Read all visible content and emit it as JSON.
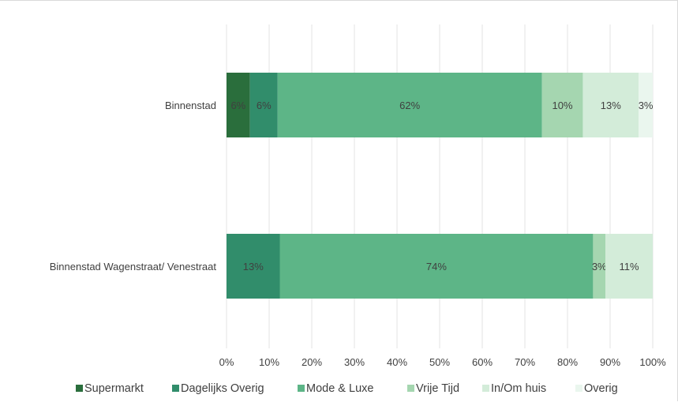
{
  "chart_data": {
    "type": "bar",
    "orientation": "horizontal",
    "stacked": true,
    "title": "",
    "xlabel": "",
    "ylabel": "",
    "xlim": [
      0,
      100
    ],
    "grid": true,
    "legend_position": "bottom",
    "categories": [
      "Binnenstad",
      "Binnenstad Wagenstraat/ Venestraat"
    ],
    "x_ticks": [
      "0%",
      "10%",
      "20%",
      "30%",
      "40%",
      "50%",
      "60%",
      "70%",
      "80%",
      "90%",
      "100%"
    ],
    "series": [
      {
        "name": "Supermarkt",
        "color": "#2a6e3c",
        "values": [
          5.5,
          0
        ],
        "labels": [
          "6%",
          ""
        ]
      },
      {
        "name": "Dagelijks Overig",
        "color": "#318d6b",
        "values": [
          6.5,
          12.5
        ],
        "labels": [
          "6%",
          "13%"
        ]
      },
      {
        "name": "Mode & Luxe",
        "color": "#5db587",
        "values": [
          62,
          73.5
        ],
        "labels": [
          "62%",
          "74%"
        ]
      },
      {
        "name": "Vrije Tijd",
        "color": "#a5d6b0",
        "values": [
          9.6,
          2.9
        ],
        "labels": [
          "10%",
          "3%"
        ]
      },
      {
        "name": "In/Om huis",
        "color": "#d3ecd9",
        "values": [
          13.1,
          11.1
        ],
        "labels": [
          "13%",
          "11%"
        ]
      },
      {
        "name": "Overig",
        "color": "#eaf6ee",
        "values": [
          3.3,
          0
        ],
        "labels": [
          "3%",
          ""
        ]
      }
    ]
  }
}
